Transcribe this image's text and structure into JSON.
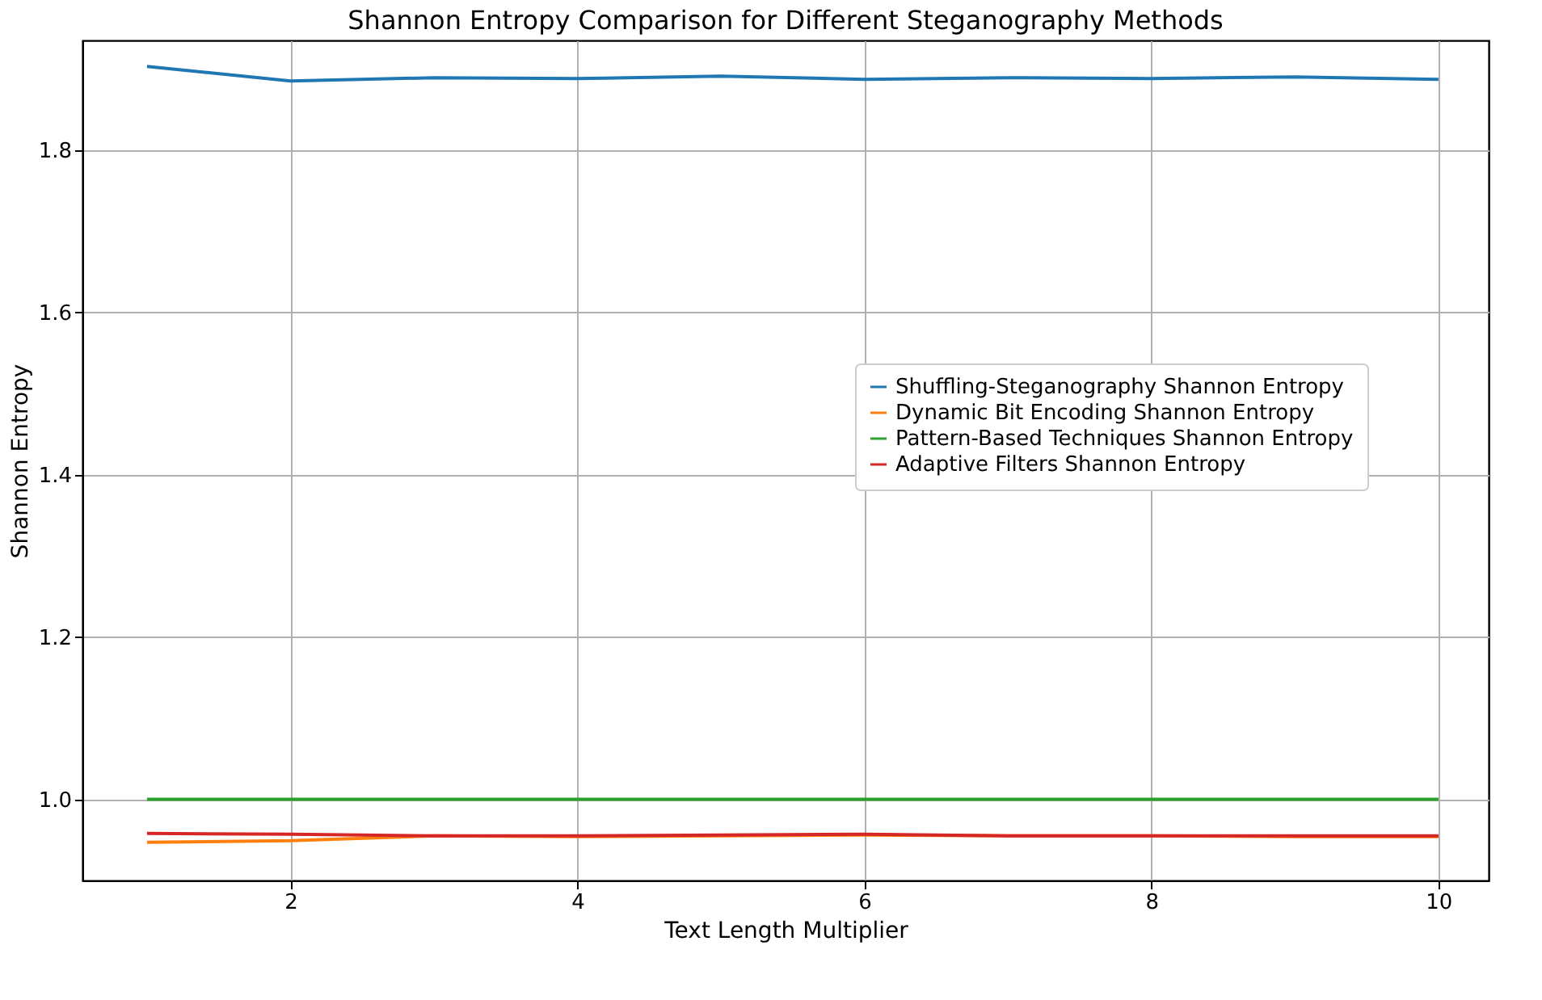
{
  "chart_data": {
    "type": "line",
    "title": "Shannon Entropy Comparison for Different Steganography Methods",
    "xlabel": "Text Length Multiplier",
    "ylabel": "Shannon Entropy",
    "x": [
      1,
      2,
      3,
      4,
      5,
      6,
      7,
      8,
      9,
      10
    ],
    "series": [
      {
        "name": "Shuffling-Steganography Shannon Entropy",
        "color": "#1f77b4",
        "values": [
          1.903,
          1.885,
          1.889,
          1.888,
          1.891,
          1.887,
          1.889,
          1.888,
          1.89,
          1.887
        ]
      },
      {
        "name": "Dynamic Bit Encoding Shannon Entropy",
        "color": "#ff7f0e",
        "values": [
          0.947,
          0.949,
          0.955,
          0.954,
          0.955,
          0.956,
          0.955,
          0.955,
          0.954,
          0.954
        ]
      },
      {
        "name": "Pattern-Based Techniques Shannon Entropy",
        "color": "#2ca02c",
        "values": [
          1.0,
          1.0,
          1.0,
          1.0,
          1.0,
          1.0,
          1.0,
          1.0,
          1.0,
          1.0
        ]
      },
      {
        "name": "Adaptive Filters Shannon Entropy",
        "color": "#d62728",
        "values": [
          0.958,
          0.957,
          0.955,
          0.955,
          0.956,
          0.957,
          0.955,
          0.955,
          0.955,
          0.955
        ]
      }
    ],
    "xlim": [
      0.55,
      10.35
    ],
    "xticks": [
      2,
      4,
      6,
      8,
      10
    ],
    "ylim": [
      0.9,
      1.935
    ],
    "yticks": [
      {
        "value": 1.0,
        "label": "1.0"
      },
      {
        "value": 1.2,
        "label": "1.2"
      },
      {
        "value": 1.4,
        "label": "1.4"
      },
      {
        "value": 1.6,
        "label": "1.6"
      },
      {
        "value": 1.8,
        "label": "1.8"
      }
    ],
    "grid": true,
    "legend": "right",
    "marker": "none",
    "line_style": "solid"
  }
}
